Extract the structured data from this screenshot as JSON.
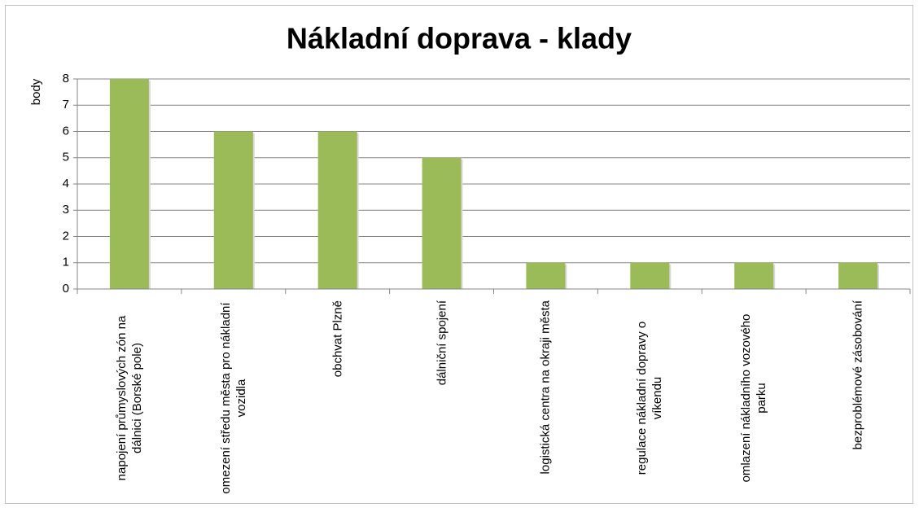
{
  "chart_data": {
    "type": "bar",
    "title": "Nákladní doprava - klady",
    "y_label": "body",
    "categories": [
      "napojení průmyslových zón na dálnici (Borské pole)",
      "omezení středu města pro nákladní vozidla",
      "obchvat Plzně",
      "dálniční spojení",
      "logistická centra na okraji města",
      "regulace nákladní dopravy o víkendu",
      "omlazení nákladního vozového parku",
      "bezproblémové zásobování"
    ],
    "values": [
      8,
      6,
      6,
      5,
      1,
      1,
      1,
      1
    ],
    "color": "#9bbb59",
    "ylim": [
      0,
      8
    ],
    "yticks": [
      0,
      1,
      2,
      3,
      4,
      5,
      6,
      7,
      8
    ],
    "grid": true
  }
}
